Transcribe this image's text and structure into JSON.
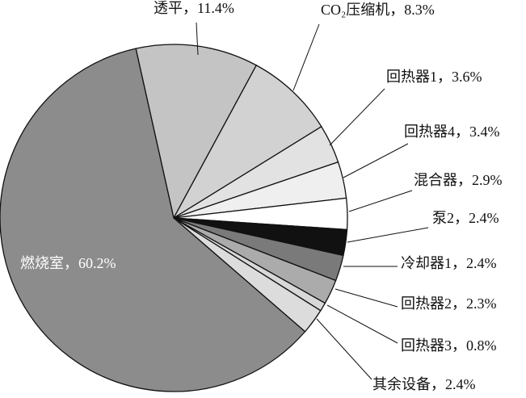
{
  "chart_data": {
    "type": "pie",
    "labels": [
      "透平，11.4%",
      "CO₂压缩机，8.3%",
      "回热器1，3.6%",
      "回热器4，3.4%",
      "混合器，2.9%",
      "泵2，2.4%",
      "冷却器1，2.4%",
      "回热器2，2.3%",
      "回热器3，0.8%",
      "其余设备，2.4%",
      "燃烧室，60.2%"
    ],
    "values": [
      11.4,
      8.3,
      3.6,
      3.4,
      2.9,
      2.4,
      2.4,
      2.3,
      0.8,
      2.4,
      60.2
    ],
    "colors": [
      "#c4c4c4",
      "#d2d2d2",
      "#e2e2e2",
      "#efefef",
      "#ffffff",
      "#111111",
      "#7a7a7a",
      "#ababab",
      "#d8d8d8",
      "#dcdcdc",
      "#8c8c8c"
    ]
  }
}
